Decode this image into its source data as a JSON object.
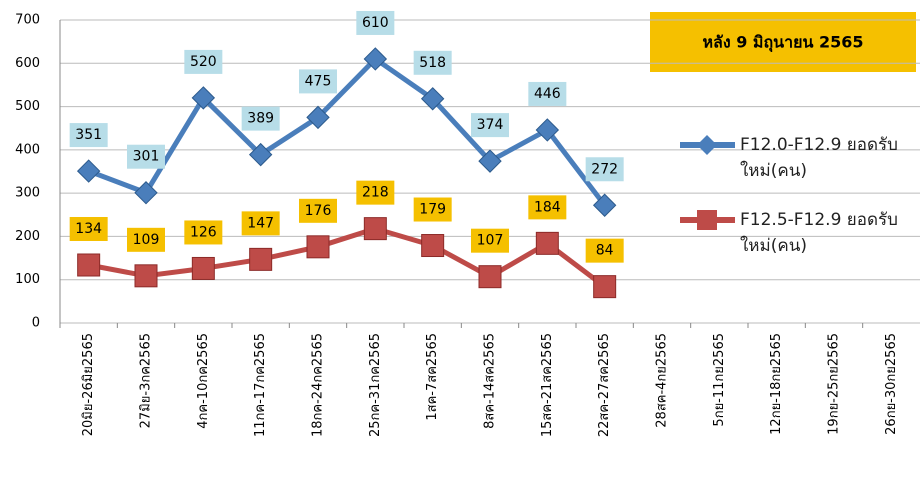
{
  "chart_data": {
    "type": "line",
    "annotation": "หลัง 9 มิถุนายน 2565",
    "categories": [
      "20มิย-26มิย2565",
      "27มิย-3กค2565",
      "4กค-10กค2565",
      "11กค-17กค2565",
      "18กค-24กค2565",
      "25กค-31กค2565",
      "1สค-7สค2565",
      "8สค-14สค2565",
      "15สค-21สค2565",
      "22สค-27สค2565",
      "28สค-4กย2565",
      "5กย-11กย2565",
      "12กย-18กย2565",
      "19กย-25กย2565",
      "26กย-30กย2565"
    ],
    "series": [
      {
        "name": "F12.0-F12.9 ยอดรับใหม่(คน)",
        "color": "#4a7ebb",
        "marker": "diamond",
        "label_color": "#b7dde8",
        "values": [
          351,
          301,
          520,
          389,
          475,
          610,
          518,
          374,
          446,
          272,
          null,
          null,
          null,
          null,
          null
        ]
      },
      {
        "name": "F12.5-F12.9 ยอดรับใหม่(คน)",
        "color": "#be4b48",
        "marker": "square",
        "label_color": "#f5c000",
        "values": [
          134,
          109,
          126,
          147,
          176,
          218,
          179,
          107,
          184,
          84,
          null,
          null,
          null,
          null,
          null
        ]
      }
    ],
    "ylim": [
      0,
      700
    ],
    "yticks": [
      0,
      100,
      200,
      300,
      400,
      500,
      600,
      700
    ],
    "grid": true
  }
}
